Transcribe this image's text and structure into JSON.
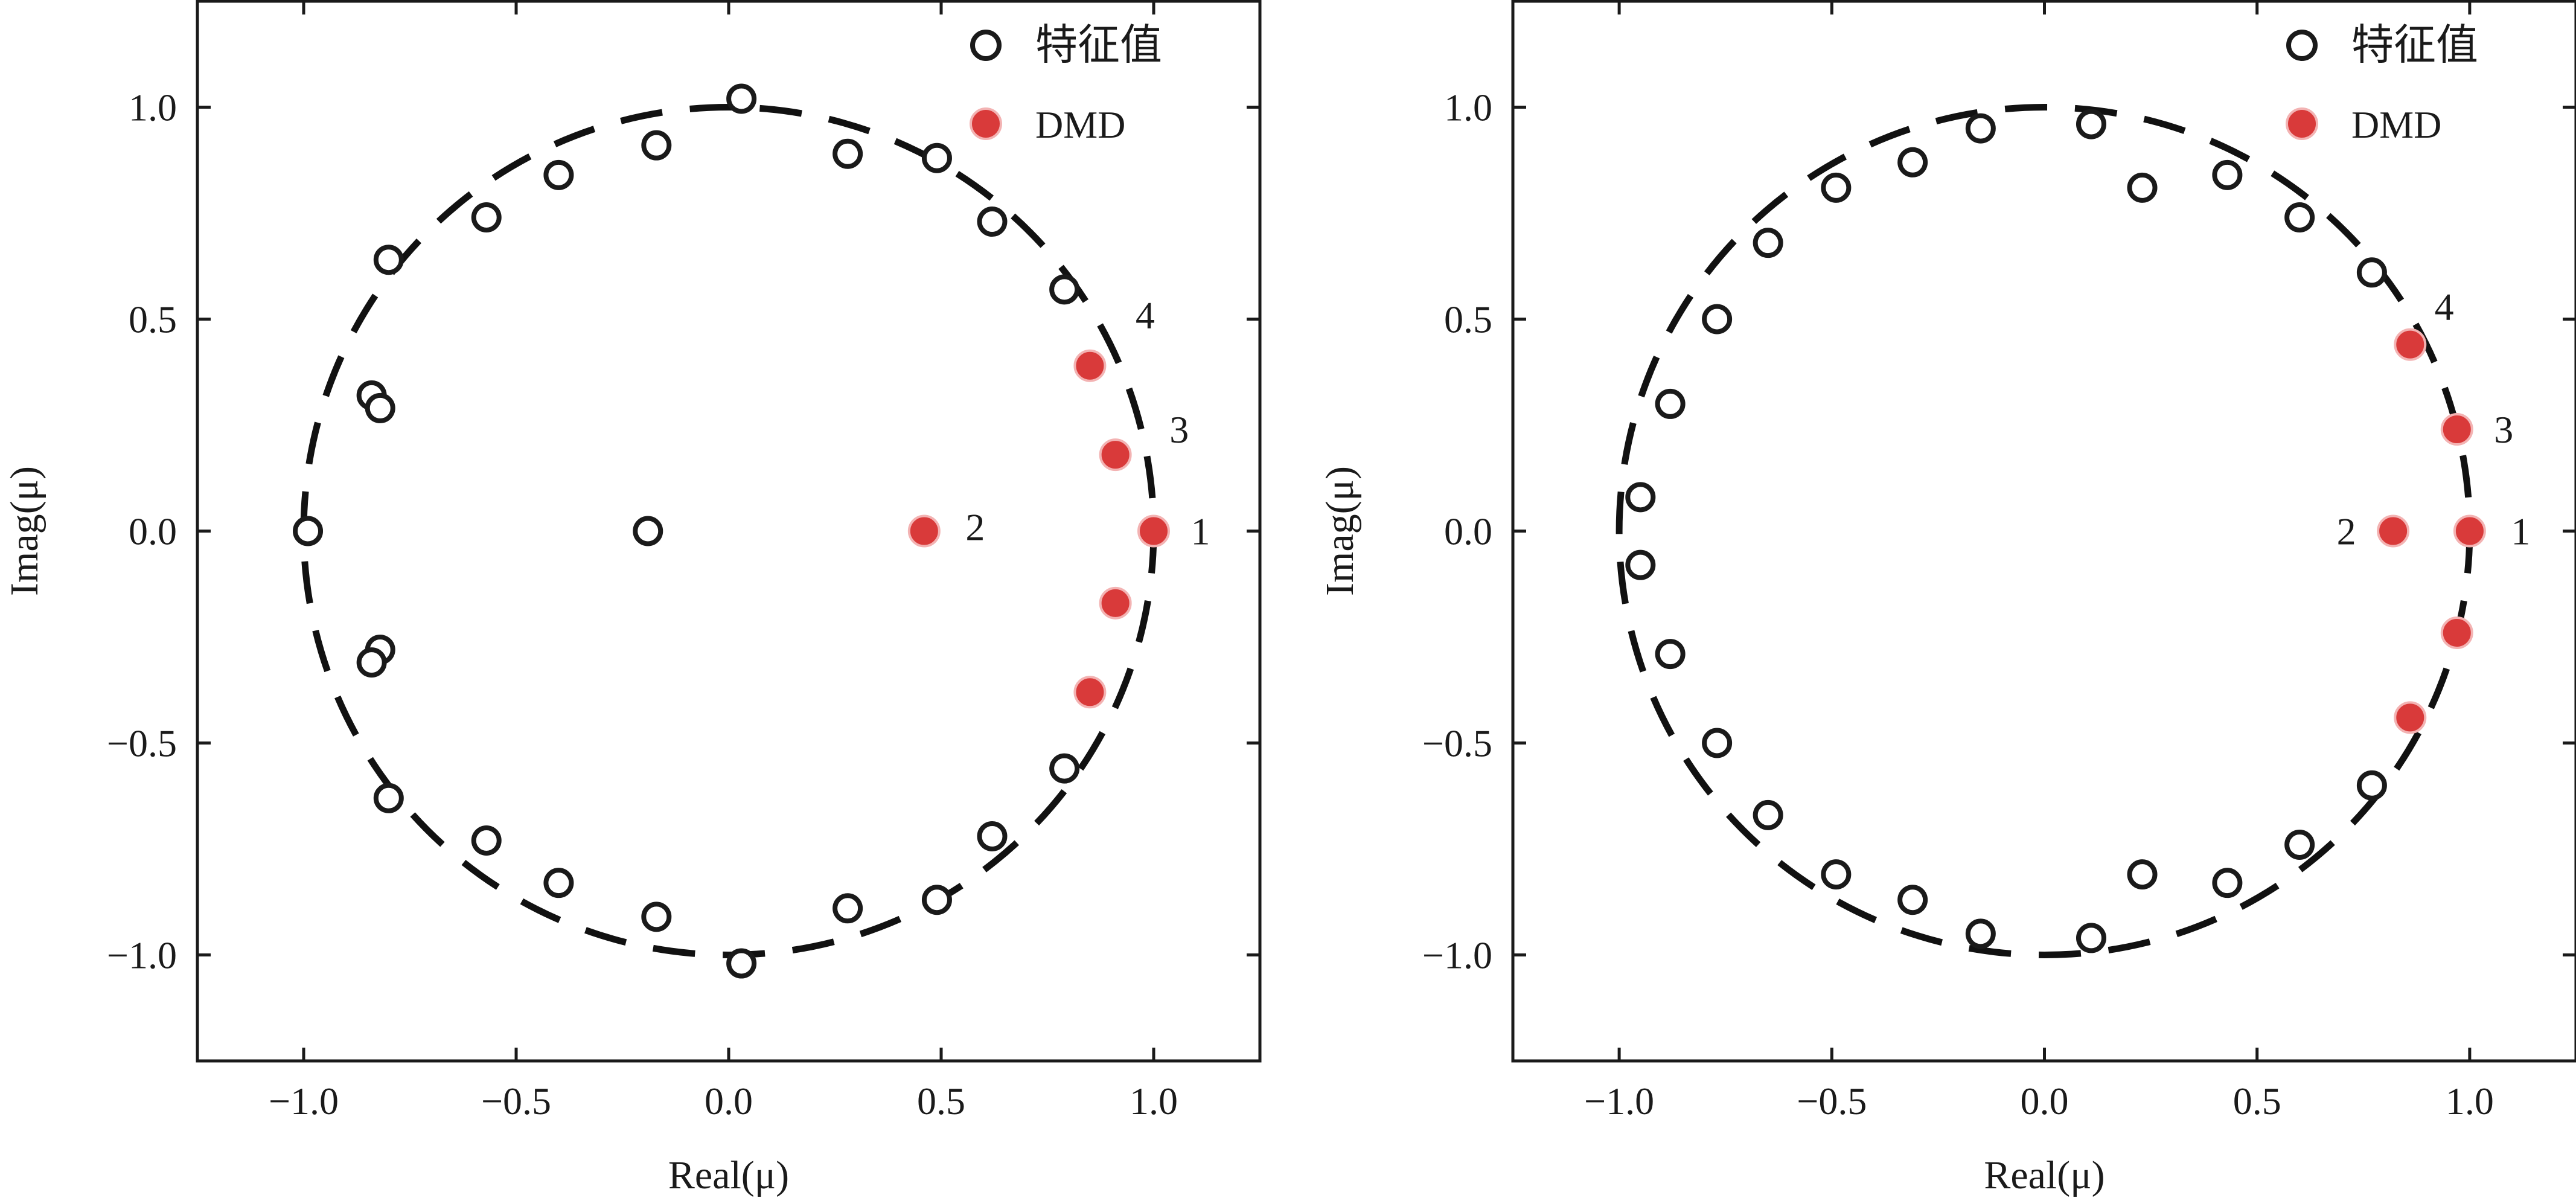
{
  "chart_data": [
    {
      "type": "scatter",
      "title": "",
      "xlabel": "Real(μ)",
      "ylabel": "Imag(μ)",
      "xlim": [
        -1.25,
        1.25
      ],
      "ylim": [
        -1.25,
        1.25
      ],
      "x_ticks": [
        -1.0,
        -0.5,
        0.0,
        0.5,
        1.0
      ],
      "y_ticks": [
        -1.0,
        -0.5,
        0.0,
        0.5,
        1.0
      ],
      "x_tick_labels": [
        "−1.0",
        "−0.5",
        "0.0",
        "0.5",
        "1.0"
      ],
      "y_tick_labels": [
        "−1.0",
        "−0.5",
        "0.0",
        "0.5",
        "1.0"
      ],
      "grid": false,
      "legend": "top-right",
      "unit_circle": "dashed",
      "series": [
        {
          "name": "特征值",
          "marker": "open-circle",
          "color": "#1a1a1a",
          "points": [
            [
              0.03,
              1.02
            ],
            [
              0.28,
              0.89
            ],
            [
              0.49,
              0.88
            ],
            [
              0.62,
              0.73
            ],
            [
              0.79,
              0.57
            ],
            [
              -0.17,
              0.91
            ],
            [
              -0.4,
              0.84
            ],
            [
              -0.57,
              0.74
            ],
            [
              -0.8,
              0.64
            ],
            [
              -0.84,
              0.32
            ],
            [
              -0.82,
              0.29
            ],
            [
              -0.99,
              0.0
            ],
            [
              -0.19,
              0.0
            ],
            [
              -0.82,
              -0.28
            ],
            [
              -0.84,
              -0.31
            ],
            [
              -0.8,
              -0.63
            ],
            [
              -0.57,
              -0.73
            ],
            [
              -0.4,
              -0.83
            ],
            [
              -0.17,
              -0.91
            ],
            [
              0.03,
              -1.02
            ],
            [
              0.28,
              -0.89
            ],
            [
              0.49,
              -0.87
            ],
            [
              0.62,
              -0.72
            ],
            [
              0.79,
              -0.56
            ],
            [
              1.0,
              0.0
            ]
          ]
        },
        {
          "name": "DMD",
          "marker": "filled-circle",
          "color": "#d93a3a",
          "points": [
            [
              0.85,
              0.39
            ],
            [
              0.91,
              0.18
            ],
            [
              1.0,
              0.0
            ],
            [
              0.46,
              0.0
            ],
            [
              0.91,
              -0.17
            ],
            [
              0.85,
              -0.38
            ]
          ]
        }
      ],
      "annotations": [
        {
          "text": "4",
          "x": 0.98,
          "y": 0.51
        },
        {
          "text": "3",
          "x": 1.06,
          "y": 0.24
        },
        {
          "text": "2",
          "x": 0.58,
          "y": 0.01
        },
        {
          "text": "1",
          "x": 1.11,
          "y": 0.0
        }
      ]
    },
    {
      "type": "scatter",
      "title": "",
      "xlabel": "Real(μ)",
      "ylabel": "Imag(μ)",
      "xlim": [
        -1.25,
        1.25
      ],
      "ylim": [
        -1.25,
        1.25
      ],
      "x_ticks": [
        -1.0,
        -0.5,
        0.0,
        0.5,
        1.0
      ],
      "y_ticks": [
        -1.0,
        -0.5,
        0.0,
        0.5,
        1.0
      ],
      "x_tick_labels": [
        "−1.0",
        "−0.5",
        "0.0",
        "0.5",
        "1.0"
      ],
      "y_tick_labels": [
        "−1.0",
        "−0.5",
        "0.0",
        "0.5",
        "1.0"
      ],
      "grid": false,
      "legend": "top-right",
      "unit_circle": "dashed",
      "series": [
        {
          "name": "特征值",
          "marker": "open-circle",
          "color": "#1a1a1a",
          "points": [
            [
              0.11,
              0.96
            ],
            [
              0.23,
              0.81
            ],
            [
              0.43,
              0.84
            ],
            [
              0.6,
              0.74
            ],
            [
              0.77,
              0.61
            ],
            [
              -0.15,
              0.95
            ],
            [
              -0.31,
              0.87
            ],
            [
              -0.49,
              0.81
            ],
            [
              -0.65,
              0.68
            ],
            [
              -0.77,
              0.5
            ],
            [
              -0.88,
              0.3
            ],
            [
              -0.95,
              0.08
            ],
            [
              -0.95,
              -0.08
            ],
            [
              -0.88,
              -0.29
            ],
            [
              -0.77,
              -0.5
            ],
            [
              -0.65,
              -0.67
            ],
            [
              -0.49,
              -0.81
            ],
            [
              -0.31,
              -0.87
            ],
            [
              -0.15,
              -0.95
            ],
            [
              0.11,
              -0.96
            ],
            [
              0.23,
              -0.81
            ],
            [
              0.43,
              -0.83
            ],
            [
              0.6,
              -0.74
            ],
            [
              0.77,
              -0.6
            ]
          ]
        },
        {
          "name": "DMD",
          "marker": "filled-circle",
          "color": "#d93a3a",
          "points": [
            [
              0.86,
              0.44
            ],
            [
              0.97,
              0.24
            ],
            [
              1.0,
              0.0
            ],
            [
              0.82,
              0.0
            ],
            [
              0.97,
              -0.24
            ],
            [
              0.86,
              -0.44
            ]
          ]
        }
      ],
      "annotations": [
        {
          "text": "4",
          "x": 0.94,
          "y": 0.53
        },
        {
          "text": "3",
          "x": 1.08,
          "y": 0.24
        },
        {
          "text": "2",
          "x": 0.71,
          "y": 0.0
        },
        {
          "text": "1",
          "x": 1.12,
          "y": 0.0
        }
      ]
    }
  ]
}
